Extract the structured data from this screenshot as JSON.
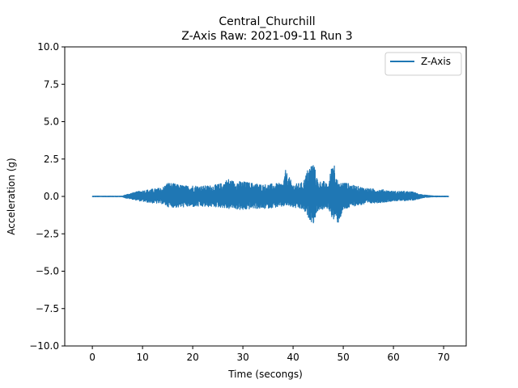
{
  "chart_data": {
    "type": "line",
    "title": "Central_Churchill",
    "subtitle": "Z-Axis Raw: 2021-09-11 Run 3",
    "xlabel": "Time (secongs)",
    "ylabel": "Acceleration (g)",
    "xlim": [
      -5.5,
      74.5
    ],
    "ylim": [
      -10.0,
      10.0
    ],
    "x_ticks": [
      0,
      10,
      20,
      30,
      40,
      50,
      60,
      70
    ],
    "x_tick_labels": [
      "0",
      "10",
      "20",
      "30",
      "40",
      "50",
      "60",
      "70"
    ],
    "y_ticks": [
      -10.0,
      -7.5,
      -5.0,
      -2.5,
      0.0,
      2.5,
      5.0,
      7.5,
      10.0
    ],
    "y_tick_labels": [
      "−10.0",
      "−7.5",
      "−5.0",
      "−2.5",
      "0.0",
      "2.5",
      "5.0",
      "7.5",
      "10.0"
    ],
    "grid": false,
    "legend_position": "upper right",
    "series": [
      {
        "name": "Z-Axis",
        "color": "#1f77b4",
        "envelope": {
          "x": [
            0,
            6,
            6.5,
            8,
            10,
            12,
            14,
            15,
            17,
            19,
            20,
            22,
            24,
            26,
            27,
            28,
            30,
            32,
            34,
            36,
            38,
            38.5,
            40,
            42,
            43,
            44,
            45,
            46,
            47,
            48,
            49,
            50,
            52,
            54,
            56,
            58,
            60,
            62,
            64,
            66,
            68,
            71
          ],
          "upper": [
            0.02,
            0.02,
            0.1,
            0.25,
            0.4,
            0.5,
            0.6,
            0.95,
            0.8,
            0.7,
            0.75,
            0.7,
            0.75,
            0.9,
            1.2,
            1.05,
            1.0,
            0.9,
            0.8,
            0.85,
            0.9,
            1.75,
            0.8,
            0.95,
            1.9,
            2.35,
            1.0,
            1.05,
            0.75,
            2.7,
            0.8,
            1.0,
            0.75,
            0.6,
            0.5,
            0.45,
            0.35,
            0.35,
            0.3,
            0.1,
            0.03,
            0.02
          ],
          "lower": [
            -0.02,
            -0.02,
            -0.1,
            -0.2,
            -0.35,
            -0.45,
            -0.5,
            -0.7,
            -0.75,
            -0.7,
            -0.7,
            -0.7,
            -0.7,
            -0.75,
            -0.85,
            -0.8,
            -0.95,
            -0.8,
            -0.85,
            -0.75,
            -0.7,
            -0.6,
            -0.75,
            -0.9,
            -1.4,
            -1.85,
            -0.9,
            -0.9,
            -0.8,
            -1.6,
            -1.8,
            -0.95,
            -0.65,
            -0.55,
            -0.45,
            -0.4,
            -0.3,
            -0.3,
            -0.25,
            -0.08,
            -0.03,
            -0.02
          ]
        }
      }
    ]
  }
}
